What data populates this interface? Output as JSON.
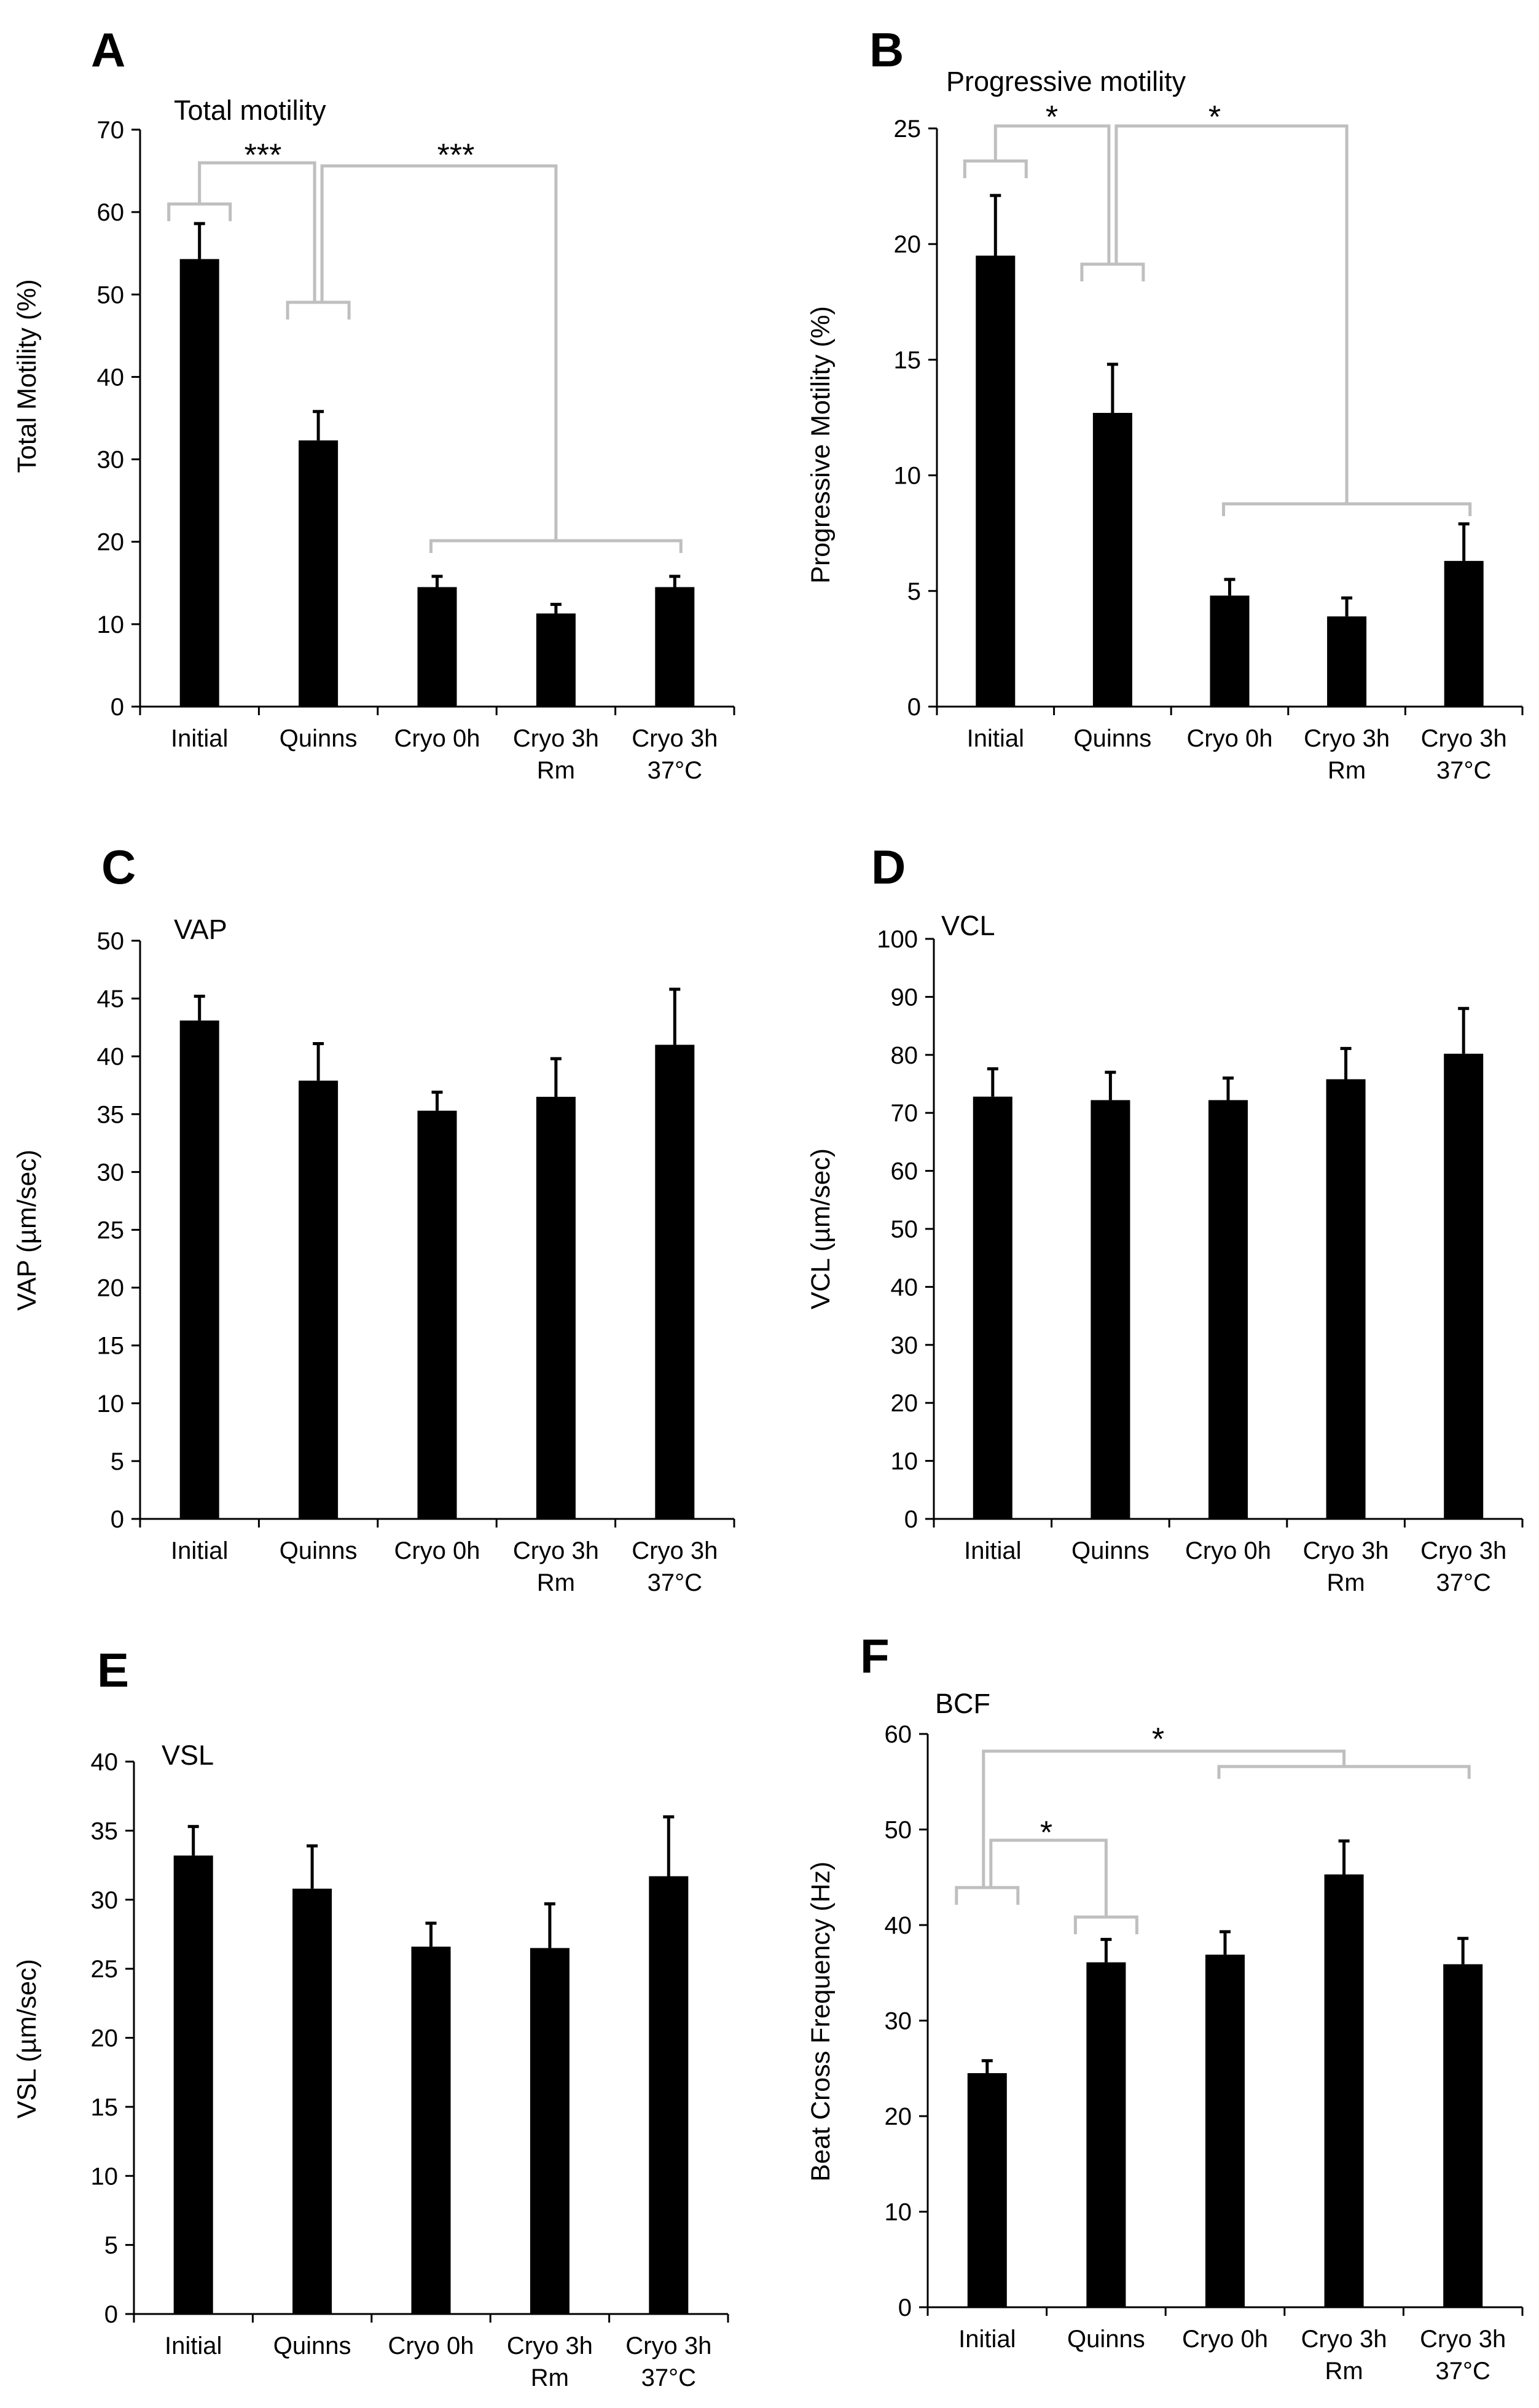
{
  "colors": {
    "bar": "#000000",
    "axis": "#000000",
    "bracket": "#bfbfbf",
    "background": "#ffffff"
  },
  "categories": [
    "Initial",
    "Quinns",
    "Cryo 0h",
    "Cryo 3h Rm",
    "Cryo 3h 37°C"
  ],
  "category_label_lines": [
    [
      "Initial"
    ],
    [
      "Quinns"
    ],
    [
      "Cryo 0h"
    ],
    [
      "Cryo 3h",
      "Rm"
    ],
    [
      "Cryo 3h",
      "37°C"
    ]
  ],
  "chart_data": [
    {
      "panel": "A",
      "type": "bar",
      "title": "Total motility",
      "xlabel": "",
      "ylabel": "Total Motility (%)",
      "ylim": [
        0,
        70
      ],
      "yticks": [
        0,
        10,
        20,
        30,
        40,
        50,
        60,
        70
      ],
      "categories": [
        "Initial",
        "Quinns",
        "Cryo 0h",
        "Cryo 3h Rm",
        "Cryo 3h 37°C"
      ],
      "values": [
        54.3,
        32.3,
        14.5,
        11.3,
        14.5
      ],
      "errors": [
        4.3,
        3.5,
        1.3,
        1.1,
        1.3
      ],
      "significance": [
        {
          "groups_left": [
            0
          ],
          "groups_right": [
            1
          ],
          "label": "***"
        },
        {
          "groups_left": [
            1
          ],
          "groups_right": [
            2,
            3,
            4
          ],
          "label": "***"
        }
      ]
    },
    {
      "panel": "B",
      "type": "bar",
      "title": "Progressive motility",
      "xlabel": "",
      "ylabel": "Progressive Motility (%)",
      "ylim": [
        0,
        25
      ],
      "yticks": [
        0,
        5,
        10,
        15,
        20,
        25
      ],
      "categories": [
        "Initial",
        "Quinns",
        "Cryo 0h",
        "Cryo 3h Rm",
        "Cryo 3h 37°C"
      ],
      "values": [
        19.5,
        12.7,
        4.8,
        3.9,
        6.3
      ],
      "errors": [
        2.6,
        2.1,
        0.7,
        0.8,
        1.6
      ],
      "significance": [
        {
          "groups_left": [
            0
          ],
          "groups_right": [
            1
          ],
          "label": "*"
        },
        {
          "groups_left": [
            1
          ],
          "groups_right": [
            2,
            3,
            4
          ],
          "label": "*"
        }
      ]
    },
    {
      "panel": "C",
      "type": "bar",
      "title": "VAP",
      "xlabel": "",
      "ylabel": "VAP (µm/sec)",
      "ylim": [
        0,
        50
      ],
      "yticks": [
        0,
        5,
        10,
        15,
        20,
        25,
        30,
        35,
        40,
        45,
        50
      ],
      "categories": [
        "Initial",
        "Quinns",
        "Cryo 0h",
        "Cryo 3h Rm",
        "Cryo 3h 37°C"
      ],
      "values": [
        43.1,
        37.9,
        35.3,
        36.5,
        41.0
      ],
      "errors": [
        2.1,
        3.2,
        1.6,
        3.3,
        4.8
      ],
      "significance": []
    },
    {
      "panel": "D",
      "type": "bar",
      "title": "VCL",
      "xlabel": "",
      "ylabel": "VCL (µm/sec)",
      "ylim": [
        0,
        100
      ],
      "yticks": [
        0,
        10,
        20,
        30,
        40,
        50,
        60,
        70,
        80,
        90,
        100
      ],
      "categories": [
        "Initial",
        "Quinns",
        "Cryo 0h",
        "Cryo 3h Rm",
        "Cryo 3h 37°C"
      ],
      "values": [
        72.8,
        72.2,
        72.2,
        75.8,
        80.2
      ],
      "errors": [
        4.8,
        4.8,
        3.8,
        5.3,
        7.8
      ],
      "significance": []
    },
    {
      "panel": "E",
      "type": "bar",
      "title": "VSL",
      "xlabel": "",
      "ylabel": "VSL (µm/sec)",
      "ylim": [
        0,
        40
      ],
      "yticks": [
        0,
        5,
        10,
        15,
        20,
        25,
        30,
        35,
        40
      ],
      "categories": [
        "Initial",
        "Quinns",
        "Cryo 0h",
        "Cryo 3h Rm",
        "Cryo 3h 37°C"
      ],
      "values": [
        33.2,
        30.8,
        26.6,
        26.5,
        31.7
      ],
      "errors": [
        2.1,
        3.1,
        1.7,
        3.2,
        4.3
      ],
      "significance": []
    },
    {
      "panel": "F",
      "type": "bar",
      "title": "BCF",
      "xlabel": "",
      "ylabel": "Beat Cross Frequency (Hz)",
      "ylim": [
        0,
        60
      ],
      "yticks": [
        0,
        10,
        20,
        30,
        40,
        50,
        60
      ],
      "categories": [
        "Initial",
        "Quinns",
        "Cryo 0h",
        "Cryo 3h Rm",
        "Cryo 3h 37°C"
      ],
      "values": [
        24.5,
        36.1,
        36.9,
        45.3,
        35.9
      ],
      "errors": [
        1.3,
        2.4,
        2.4,
        3.5,
        2.7
      ],
      "significance": [
        {
          "groups_left": [
            0
          ],
          "groups_right": [
            1
          ],
          "label": "*"
        },
        {
          "groups_left": [
            0
          ],
          "groups_right": [
            2,
            3,
            4
          ],
          "label": "*"
        }
      ]
    }
  ]
}
